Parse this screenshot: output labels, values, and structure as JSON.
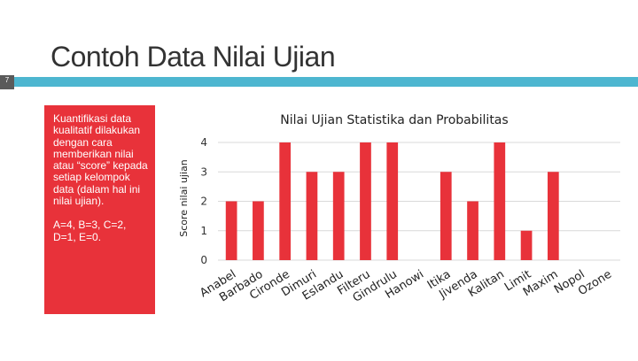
{
  "slide": {
    "title": "Contoh Data Nilai Ujian",
    "number": "7",
    "paragraph1": "Kuantifikasi data kualitatif dilakukan dengan cara memberikan nilai atau “score” kepada setiap kelompok data (dalam hal ini nilai ujian).",
    "paragraph2": "A=4, B=3, C=2, D=1, E=0."
  },
  "colors": {
    "bar": "#e8323a",
    "panel": "#e8323a",
    "accent": "#4db6d0",
    "grid": "#d9d9d9"
  },
  "chart_data": {
    "type": "bar",
    "title": "Nilai Ujian Statistika dan Probabilitas",
    "ylabel": "Score nilai ujian",
    "xlabel": "",
    "ylim": [
      0,
      4
    ],
    "yticks": [
      "0",
      "1",
      "2",
      "3",
      "4"
    ],
    "grid": true,
    "legend": "none",
    "categories": [
      "Anabel",
      "Barbado",
      "Cironde",
      "Dimuri",
      "Eslandu",
      "Filteru",
      "Gindrulu",
      "Hanowi",
      "Itika",
      "Jivenda",
      "Kalitan",
      "Limit",
      "Maxim",
      "Nopol",
      "Ozone"
    ],
    "values": [
      2,
      2,
      4,
      3,
      3,
      4,
      4,
      0,
      3,
      2,
      4,
      1,
      3,
      0,
      0
    ]
  }
}
